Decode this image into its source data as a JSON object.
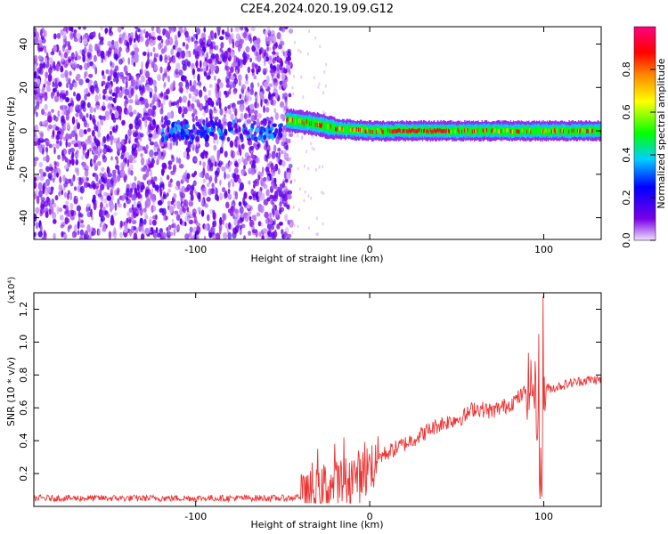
{
  "title": "C2E4.2024.020.19.09.G12",
  "chart_data": [
    {
      "type": "heatmap",
      "xlabel": "Height of straight line (km)",
      "ylabel": "Frequency (Hz)",
      "xlim": [
        -193,
        133
      ],
      "ylim": [
        -50,
        48
      ],
      "xticks": [
        -100,
        0,
        100
      ],
      "yticks": [
        -40,
        -20,
        0,
        20,
        40
      ],
      "grid": false,
      "colorbar": {
        "label": "Normalized spectral amplitude",
        "range": [
          0.0,
          1.0
        ],
        "ticks": [
          "0.0",
          "0.2",
          "0.4",
          "0.6",
          "0.8"
        ],
        "colors": [
          "#f0e0ff",
          "#7a00e6",
          "#0000ff",
          "#00d0ff",
          "#00ff00",
          "#ffff00",
          "#ff8000",
          "#ff0000",
          "#ff0080"
        ]
      },
      "features": {
        "noise_region_x": [
          -193,
          -48
        ],
        "noise_amplitude": 0.15,
        "signal_line_x": [
          -48,
          133
        ],
        "signal_center_freq_hz": [
          [
            -48,
            5
          ],
          [
            -30,
            3
          ],
          [
            -20,
            1
          ],
          [
            0,
            0
          ],
          [
            40,
            0
          ],
          [
            100,
            0
          ],
          [
            133,
            0
          ]
        ],
        "signal_peak_amplitude": 0.9
      }
    },
    {
      "type": "line",
      "xlabel": "Height of straight line (km)",
      "ylabel": "SNR (10 * v/v)",
      "yscale_label": "(x10⁴)",
      "xlim": [
        -193,
        133
      ],
      "ylim": [
        0.0,
        1.3
      ],
      "xticks": [
        -100,
        0,
        100
      ],
      "yticks": [
        0.2,
        0.4,
        0.6,
        0.8,
        1.0,
        1.2
      ],
      "color": "#ee3333",
      "series": [
        {
          "name": "",
          "x": [
            -193,
            -150,
            -100,
            -60,
            -45,
            -35,
            -25,
            -15,
            -5,
            5,
            20,
            40,
            55,
            60,
            70,
            80,
            88,
            92,
            95,
            97,
            98,
            99,
            100,
            102,
            105,
            115,
            125,
            133
          ],
          "y": [
            0.05,
            0.05,
            0.05,
            0.05,
            0.05,
            0.08,
            0.12,
            0.15,
            0.2,
            0.3,
            0.38,
            0.5,
            0.55,
            0.6,
            0.58,
            0.62,
            0.68,
            0.75,
            0.7,
            0.45,
            0.2,
            0.1,
            0.7,
            0.72,
            0.72,
            0.75,
            0.77,
            0.77
          ]
        }
      ],
      "spikes": [
        {
          "x": 99.5,
          "y": 1.28
        },
        {
          "x": 97,
          "y": 1.05
        },
        {
          "x": 98.8,
          "y": 0.06
        },
        {
          "x": -30,
          "y": 0.35
        },
        {
          "x": -20,
          "y": 0.38
        },
        {
          "x": -15,
          "y": 0.42
        }
      ]
    }
  ]
}
